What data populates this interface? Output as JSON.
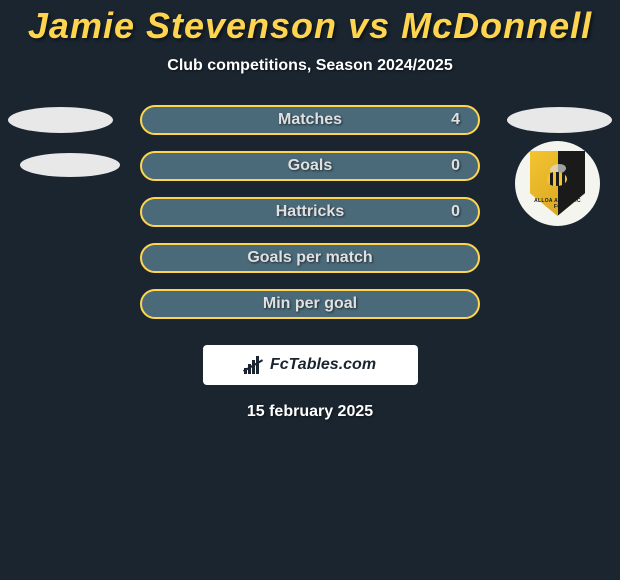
{
  "header": {
    "title": "Jamie Stevenson vs McDonnell",
    "subtitle": "Club competitions, Season 2024/2025"
  },
  "stats": [
    {
      "label": "Matches",
      "value_right": "4",
      "has_left_ellipse": true,
      "left_ellipse_variant": "normal",
      "has_right_ellipse": true,
      "has_badge": false
    },
    {
      "label": "Goals",
      "value_right": "0",
      "has_left_ellipse": true,
      "left_ellipse_variant": "small",
      "has_right_ellipse": false,
      "has_badge": true
    },
    {
      "label": "Hattricks",
      "value_right": "0",
      "has_left_ellipse": false,
      "has_right_ellipse": false,
      "has_badge": false
    },
    {
      "label": "Goals per match",
      "value_right": "",
      "has_left_ellipse": false,
      "has_right_ellipse": false,
      "has_badge": false
    },
    {
      "label": "Min per goal",
      "value_right": "",
      "has_left_ellipse": false,
      "has_right_ellipse": false,
      "has_badge": false
    }
  ],
  "badge": {
    "club_name": "ALLOA ATHLETIC FC"
  },
  "branding": {
    "site_name": "FcTables.com"
  },
  "footer": {
    "date": "15 february 2025"
  },
  "colors": {
    "background": "#1a2530",
    "accent": "#ffd54f",
    "bar_fill": "#4a6a7a",
    "ellipse": "#e8e8e8",
    "logo_box": "#ffffff"
  }
}
